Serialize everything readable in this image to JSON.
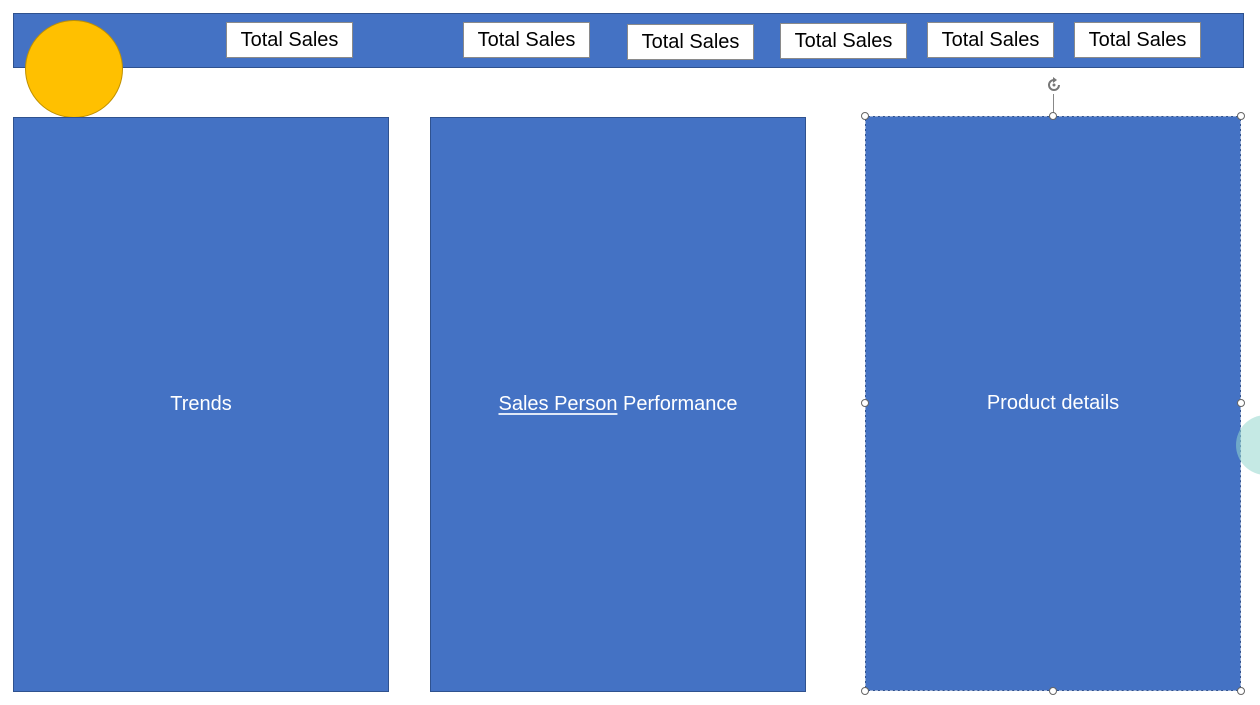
{
  "header": {
    "kpi_boxes": [
      {
        "label": "Total Sales"
      },
      {
        "label": "Total Sales"
      },
      {
        "label": "Total Sales"
      },
      {
        "label": "Total Sales"
      },
      {
        "label": "Total Sales"
      },
      {
        "label": "Total Sales"
      }
    ]
  },
  "panels": {
    "trends": {
      "label": "Trends"
    },
    "sales_person": {
      "label_underlined": "Sales Person",
      "label_rest": " Performance"
    },
    "product_details": {
      "label": "Product details"
    }
  },
  "colors": {
    "shape_blue": "#4472c4",
    "logo_gold": "#ffc000"
  }
}
